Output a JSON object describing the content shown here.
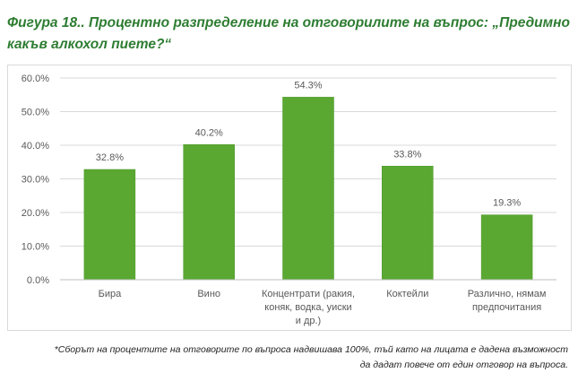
{
  "figure": {
    "title_line1": "Фигура 18.. Процентно разпределение на отговорилите на въпрос: „Предимно",
    "title_line2": "какъв алкохол пиете?“",
    "footnote_line1": "*Сборът на процентите на отговорите по въпроса надвишава 100%, тъй като на лицата е дадена възможност",
    "footnote_line2": "да дадат повече от един отговор на въпроса."
  },
  "colors": {
    "bar": "#5aa832",
    "bar_edge": "#4a9426",
    "grid": "#d9d9d9",
    "axis_text": "#595959",
    "title": "#2e7d32"
  },
  "chart_data": {
    "type": "bar",
    "title": "",
    "xlabel": "",
    "ylabel": "",
    "categories": [
      [
        "Бира"
      ],
      [
        "Вино"
      ],
      [
        "Концентрати (ракия,",
        "коняк, водка, уиски",
        "и др.)"
      ],
      [
        "Коктейли"
      ],
      [
        "Различно, нямам",
        "предпочитания"
      ]
    ],
    "values": [
      32.8,
      40.2,
      54.3,
      33.8,
      19.3
    ],
    "value_labels": [
      "32.8%",
      "40.2%",
      "54.3%",
      "33.8%",
      "19.3%"
    ],
    "ylim": [
      0,
      60
    ],
    "yticks": [
      0,
      10,
      20,
      30,
      40,
      50,
      60
    ],
    "ytick_labels": [
      "0.0%",
      "10.0%",
      "20.0%",
      "30.0%",
      "40.0%",
      "50.0%",
      "60.0%"
    ],
    "grid": true,
    "legend": "none"
  }
}
